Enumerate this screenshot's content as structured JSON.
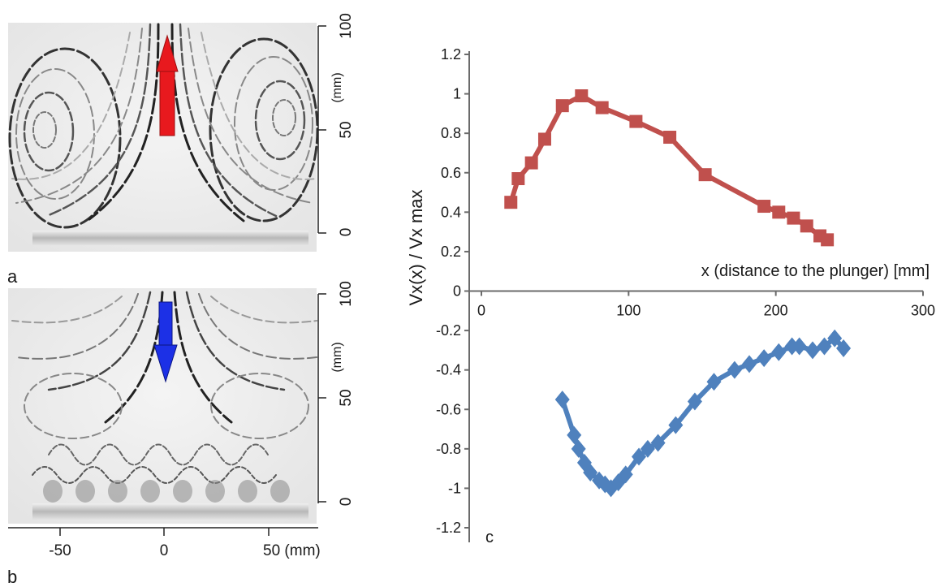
{
  "panels": {
    "a": {
      "label": "a",
      "y_ticks": [
        "0",
        "50",
        "100"
      ],
      "y_unit": "(mm)",
      "arrow": {
        "direction": "up",
        "color": "#e8191e"
      }
    },
    "b": {
      "label": "b",
      "y_ticks": [
        "0",
        "50",
        "100"
      ],
      "y_unit": "(mm)",
      "x_ticks": [
        "-50",
        "0",
        "50 (mm)"
      ],
      "arrow": {
        "direction": "down",
        "color": "#1c30e6"
      }
    }
  },
  "chart_data": {
    "type": "line",
    "panel_label": "c",
    "title": "",
    "xlabel": "x  (distance to the plunger) [mm]",
    "ylabel": "Vx(x) / Vx max",
    "xlim": [
      0,
      300
    ],
    "ylim": [
      -1.2,
      1.2
    ],
    "x_ticks": [
      0,
      100,
      200,
      300
    ],
    "y_ticks": [
      1.2,
      1,
      0.8,
      0.6,
      0.4,
      0.2,
      0,
      -0.2,
      -0.4,
      -0.6,
      -0.8,
      -1,
      -1.2
    ],
    "y_tick_labels": [
      "1.2",
      "1",
      "0.8",
      "0.6",
      "0.4",
      "0.2",
      "0",
      "-0.2",
      "-0.4",
      "-0.6",
      "-0.8",
      "-1",
      "-1.2"
    ],
    "grid": false,
    "series": [
      {
        "color": "#c0504d",
        "marker": "square",
        "x": [
          20,
          25,
          34,
          43,
          55,
          68,
          82,
          105,
          128,
          152,
          192,
          202,
          212,
          221,
          230,
          235
        ],
        "y": [
          0.45,
          0.57,
          0.65,
          0.77,
          0.94,
          0.99,
          0.93,
          0.86,
          0.78,
          0.59,
          0.43,
          0.4,
          0.37,
          0.33,
          0.28,
          0.26
        ]
      },
      {
        "color": "#4f81bd",
        "marker": "diamond",
        "x": [
          55,
          63,
          66,
          70,
          74,
          80,
          84,
          88,
          93,
          98,
          107,
          113,
          120,
          132,
          145,
          158,
          172,
          182,
          192,
          202,
          211,
          216,
          225,
          233,
          240,
          246
        ],
        "y": [
          -0.55,
          -0.73,
          -0.8,
          -0.87,
          -0.92,
          -0.96,
          -0.98,
          -1.0,
          -0.97,
          -0.93,
          -0.84,
          -0.8,
          -0.77,
          -0.68,
          -0.56,
          -0.46,
          -0.4,
          -0.37,
          -0.34,
          -0.31,
          -0.28,
          -0.28,
          -0.3,
          -0.28,
          -0.24,
          -0.29
        ]
      }
    ]
  }
}
